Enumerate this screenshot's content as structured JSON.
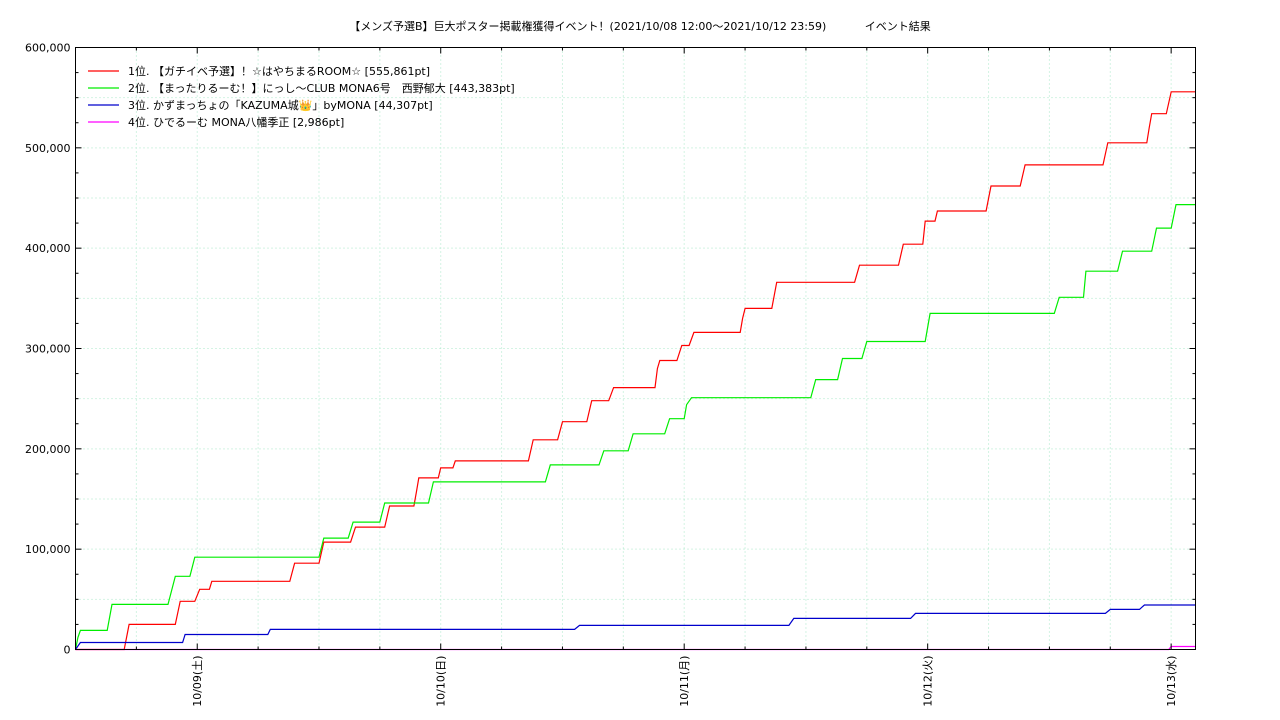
{
  "chart_data": {
    "type": "line",
    "title": "【メンズ予選B】巨大ポスター掲載権獲得イベント！(2021/10/08 12:00〜2021/10/12 23:59)",
    "subtitle": "イベント結果",
    "xlabel": "",
    "ylabel": "",
    "x_range_days": [
      0,
      4.6
    ],
    "ylim": [
      0,
      600000
    ],
    "y_ticks": [
      0,
      100000,
      200000,
      300000,
      400000,
      500000,
      600000
    ],
    "y_tick_labels": [
      "0",
      "100,000",
      "200,000",
      "300,000",
      "400,000",
      "500,000",
      "600,000"
    ],
    "x_ticks": [
      0.5,
      1.5,
      2.5,
      3.5,
      4.5
    ],
    "x_tick_labels": [
      "10/09(土)",
      "10/10(日)",
      "10/11(月)",
      "10/12(火)",
      "10/13(水)"
    ],
    "grid": true,
    "legend_position": "top-left",
    "series": [
      {
        "name": "1位. 【ガチイベ予選】！☆はやちまるROOM☆ [555,861pt]",
        "color": "#ff0000",
        "points": [
          [
            0,
            0
          ],
          [
            0.2,
            0
          ],
          [
            0.22,
            25000
          ],
          [
            0.41,
            25000
          ],
          [
            0.43,
            48000
          ],
          [
            0.49,
            48000
          ],
          [
            0.51,
            60000
          ],
          [
            0.55,
            60000
          ],
          [
            0.56,
            68000
          ],
          [
            0.88,
            68000
          ],
          [
            0.9,
            86000
          ],
          [
            1.0,
            86000
          ],
          [
            1.02,
            107000
          ],
          [
            1.13,
            107000
          ],
          [
            1.15,
            122000
          ],
          [
            1.27,
            122000
          ],
          [
            1.29,
            143000
          ],
          [
            1.39,
            143000
          ],
          [
            1.4,
            157000
          ],
          [
            1.41,
            171000
          ],
          [
            1.49,
            171000
          ],
          [
            1.5,
            181000
          ],
          [
            1.55,
            181000
          ],
          [
            1.56,
            188000
          ],
          [
            1.86,
            188000
          ],
          [
            1.88,
            209000
          ],
          [
            1.98,
            209000
          ],
          [
            2.0,
            227000
          ],
          [
            2.1,
            227000
          ],
          [
            2.12,
            248000
          ],
          [
            2.19,
            248000
          ],
          [
            2.21,
            261000
          ],
          [
            2.38,
            261000
          ],
          [
            2.39,
            280000
          ],
          [
            2.4,
            288000
          ],
          [
            2.47,
            288000
          ],
          [
            2.49,
            303000
          ],
          [
            2.52,
            303000
          ],
          [
            2.54,
            316000
          ],
          [
            2.73,
            316000
          ],
          [
            2.74,
            330000
          ],
          [
            2.75,
            340000
          ],
          [
            2.86,
            340000
          ],
          [
            2.88,
            366000
          ],
          [
            3.2,
            366000
          ],
          [
            3.22,
            383000
          ],
          [
            3.38,
            383000
          ],
          [
            3.4,
            404000
          ],
          [
            3.48,
            404000
          ],
          [
            3.49,
            427000
          ],
          [
            3.53,
            427000
          ],
          [
            3.54,
            437000
          ],
          [
            3.74,
            437000
          ],
          [
            3.76,
            462000
          ],
          [
            3.88,
            462000
          ],
          [
            3.9,
            483000
          ],
          [
            4.22,
            483000
          ],
          [
            4.24,
            505000
          ],
          [
            4.4,
            505000
          ],
          [
            4.41,
            520000
          ],
          [
            4.42,
            534000
          ],
          [
            4.48,
            534000
          ],
          [
            4.5,
            555861
          ],
          [
            4.6,
            555861
          ]
        ]
      },
      {
        "name": "2位. 【まったりるーむ！】にっし〜CLUB MONA6号　西野郁大 [443,383pt]",
        "color": "#00ee00",
        "points": [
          [
            0,
            0
          ],
          [
            0.01,
            12000
          ],
          [
            0.02,
            19000
          ],
          [
            0.13,
            19000
          ],
          [
            0.15,
            45000
          ],
          [
            0.38,
            45000
          ],
          [
            0.41,
            73000
          ],
          [
            0.47,
            73000
          ],
          [
            0.49,
            92000
          ],
          [
            1.0,
            92000
          ],
          [
            1.02,
            111000
          ],
          [
            1.12,
            111000
          ],
          [
            1.14,
            127000
          ],
          [
            1.25,
            127000
          ],
          [
            1.27,
            146000
          ],
          [
            1.45,
            146000
          ],
          [
            1.47,
            167000
          ],
          [
            1.93,
            167000
          ],
          [
            1.95,
            184000
          ],
          [
            2.15,
            184000
          ],
          [
            2.17,
            198000
          ],
          [
            2.27,
            198000
          ],
          [
            2.29,
            215000
          ],
          [
            2.42,
            215000
          ],
          [
            2.44,
            230000
          ],
          [
            2.5,
            230000
          ],
          [
            2.51,
            244000
          ],
          [
            2.53,
            251000
          ],
          [
            3.02,
            251000
          ],
          [
            3.04,
            269000
          ],
          [
            3.13,
            269000
          ],
          [
            3.15,
            290000
          ],
          [
            3.23,
            290000
          ],
          [
            3.25,
            307000
          ],
          [
            3.49,
            307000
          ],
          [
            3.51,
            335000
          ],
          [
            4.02,
            335000
          ],
          [
            4.04,
            351000
          ],
          [
            4.14,
            351000
          ],
          [
            4.15,
            377000
          ],
          [
            4.28,
            377000
          ],
          [
            4.3,
            397000
          ],
          [
            4.42,
            397000
          ],
          [
            4.44,
            420000
          ],
          [
            4.5,
            420000
          ],
          [
            4.52,
            443383
          ],
          [
            4.6,
            443383
          ]
        ]
      },
      {
        "name": "3位. かずまっちょの「KAZUMA城👑」byMONA [44,307pt]",
        "color": "#0000cc",
        "points": [
          [
            0,
            0
          ],
          [
            0.02,
            7000
          ],
          [
            0.44,
            7000
          ],
          [
            0.45,
            15000
          ],
          [
            0.79,
            15000
          ],
          [
            0.8,
            20000
          ],
          [
            2.05,
            20000
          ],
          [
            2.07,
            24000
          ],
          [
            2.93,
            24000
          ],
          [
            2.95,
            31000
          ],
          [
            3.43,
            31000
          ],
          [
            3.45,
            36000
          ],
          [
            4.23,
            36000
          ],
          [
            4.25,
            40000
          ],
          [
            4.37,
            40000
          ],
          [
            4.39,
            44307
          ],
          [
            4.6,
            44307
          ]
        ]
      },
      {
        "name": "4位. ひでるーむ MONA八幡季正 [2,986pt]",
        "color": "#ff00ff",
        "points": [
          [
            0,
            0
          ],
          [
            4.49,
            0
          ],
          [
            4.5,
            2986
          ],
          [
            4.6,
            2986
          ]
        ]
      }
    ]
  }
}
